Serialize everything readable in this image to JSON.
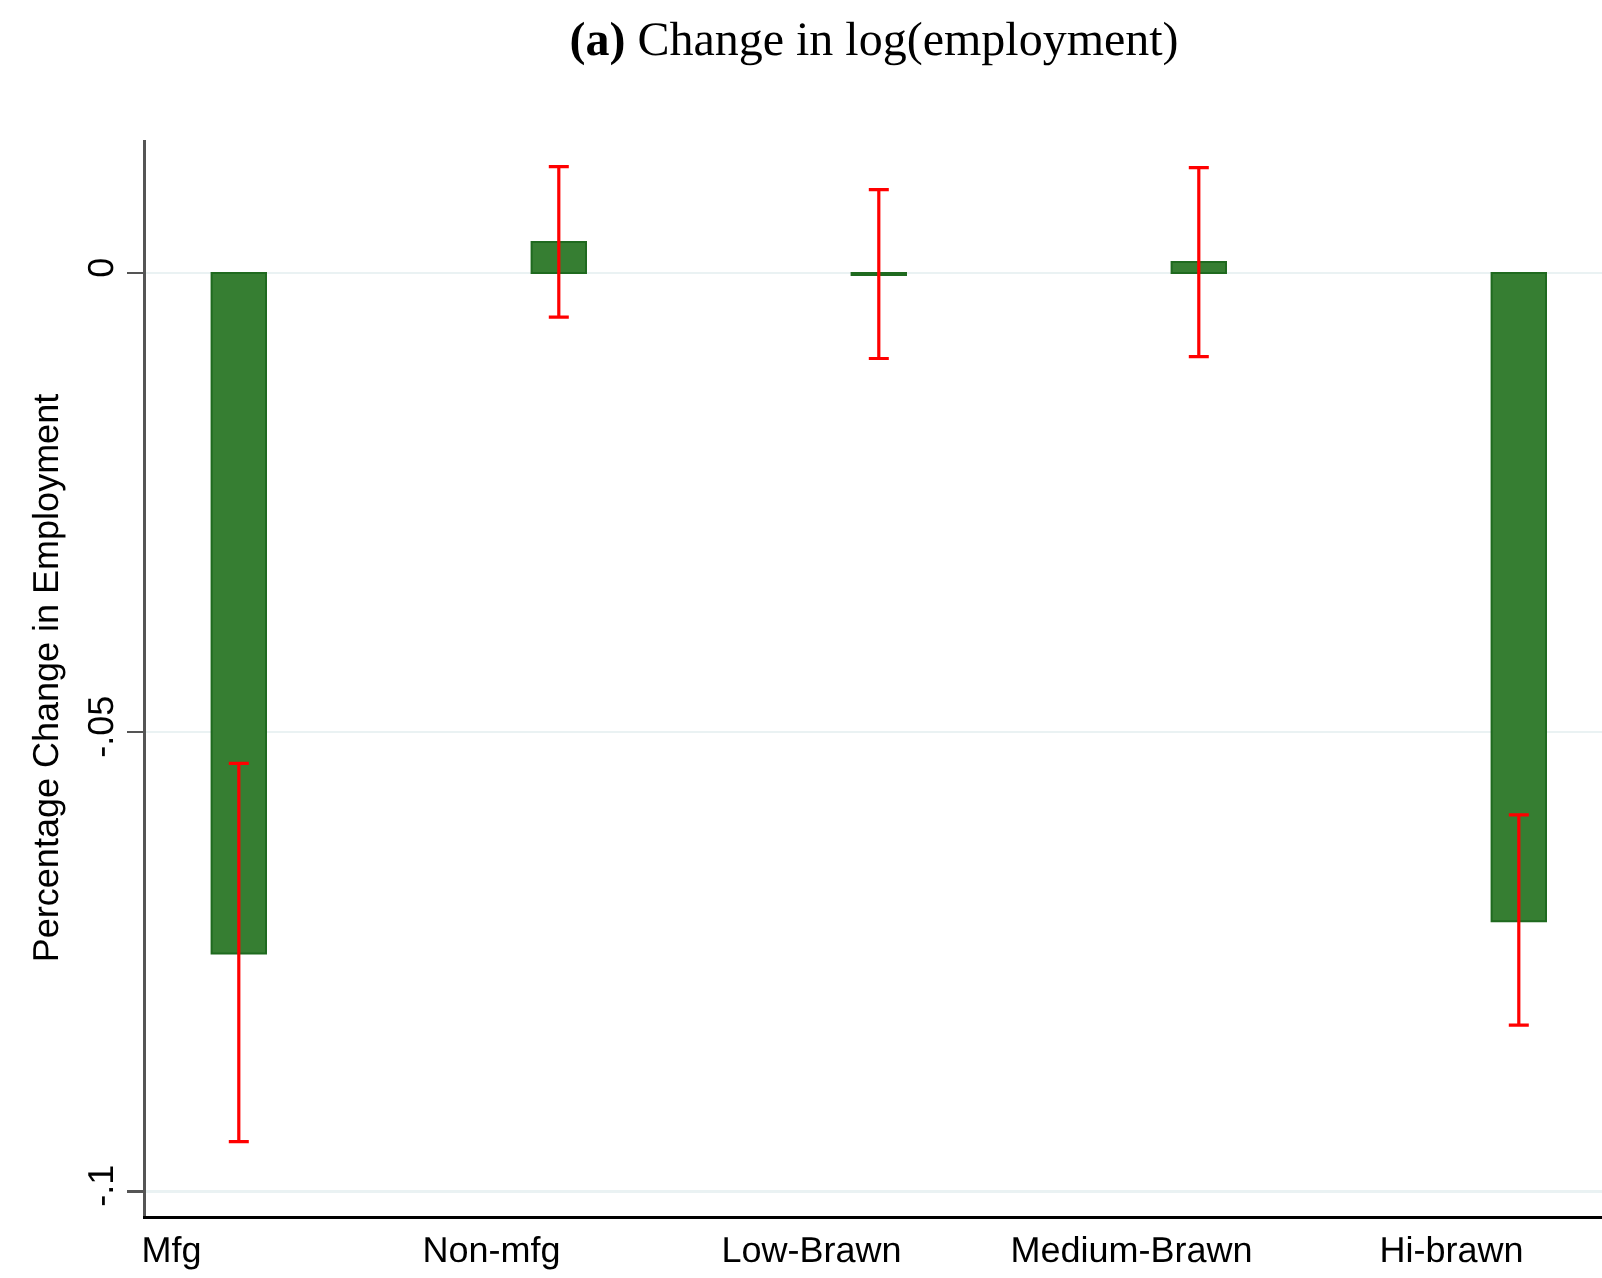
{
  "chart_data": {
    "type": "bar",
    "title": "(a) Change in log(employment)",
    "ylabel": "Percentage Change in Employment",
    "categories": [
      "Mfg",
      "Non-mfg",
      "Low-Brawn",
      "Medium-Brawn",
      "Hi-brawn"
    ],
    "values": [
      -0.0741,
      0.0034,
      -0.0002,
      0.0012,
      -0.0706
    ],
    "color": "#367e32",
    "errors": [
      [
        -0.0946,
        -0.0534
      ],
      [
        -0.0048,
        0.0116
      ],
      [
        -0.0093,
        0.0091
      ],
      [
        -0.0091,
        0.0115
      ],
      [
        -0.0819,
        -0.059
      ]
    ],
    "ylim": [
      -0.1027,
      0.0145
    ],
    "yticks": [
      {
        "value": -0.1,
        "label": "-.1"
      },
      {
        "value": -0.05,
        "label": "-.05"
      },
      0
    ],
    "grid": "y"
  }
}
